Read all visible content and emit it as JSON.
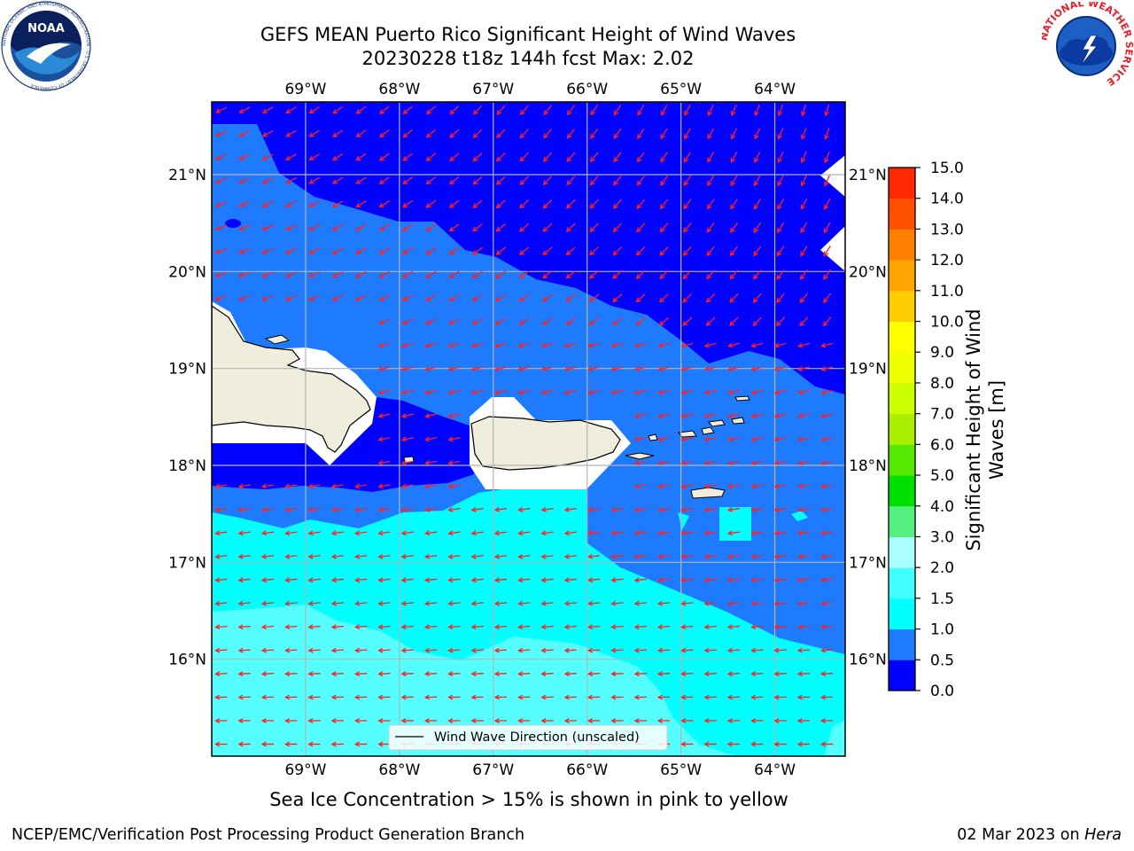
{
  "title": {
    "line1": "GEFS MEAN Puerto Rico Significant Height of Wind Waves",
    "line2": "20230228 t18z 144h fcst   Max: 2.02"
  },
  "map": {
    "lon_range": [
      -70.0,
      -63.25
    ],
    "lat_range": [
      15.0,
      21.75
    ],
    "lon_ticks": [
      -69,
      -68,
      -67,
      -66,
      -65,
      -64
    ],
    "lat_ticks": [
      16,
      17,
      18,
      19,
      20,
      21
    ],
    "lon_tick_labels": [
      "69°W",
      "68°W",
      "67°W",
      "66°W",
      "65°W",
      "64°W"
    ],
    "lat_tick_labels": [
      "16°N",
      "17°N",
      "18°N",
      "19°N",
      "20°N",
      "21°N"
    ],
    "grid": true,
    "land_color": "#efeedd",
    "arrow_color": "#ff2020",
    "wave_direction": "westward, turning south-southwest in the north"
  },
  "legend": {
    "label": "Wind Wave Direction (unscaled)",
    "placement": "bottom-center"
  },
  "colorbar": {
    "title": "Significant Height of Wind Waves [m]",
    "tick_labels": [
      "0.0",
      "0.5",
      "1.0",
      "1.5",
      "2.0",
      "3.0",
      "4.0",
      "5.0",
      "6.0",
      "7.0",
      "8.0",
      "9.0",
      "10.0",
      "11.0",
      "12.0",
      "13.0",
      "14.0",
      "15.0"
    ],
    "colors": [
      "#0000ff",
      "#1e7bff",
      "#00ffff",
      "#44ffff",
      "#aaffff",
      "#55f07f",
      "#00e000",
      "#55e800",
      "#aaee00",
      "#ccff00",
      "#eeff00",
      "#ffff00",
      "#ffcc00",
      "#ffa500",
      "#ff8000",
      "#ff5000",
      "#ff2800"
    ]
  },
  "note": "Sea Ice Concentration > 15% is shown in pink to yellow",
  "footer": {
    "left": "NCEP/EMC/Verification Post Processing Product Generation Branch",
    "right_date": "02 Mar 2023 on ",
    "right_host": "Hera"
  },
  "logos": {
    "noaa": "NOAA",
    "noaa_ring": "NATIONAL OCEANIC AND ATMOSPHERIC ADMINISTRATION · U.S. DEPARTMENT OF COMMERCE ·",
    "nws_ring": "NATIONAL WEATHER SERVICE"
  }
}
